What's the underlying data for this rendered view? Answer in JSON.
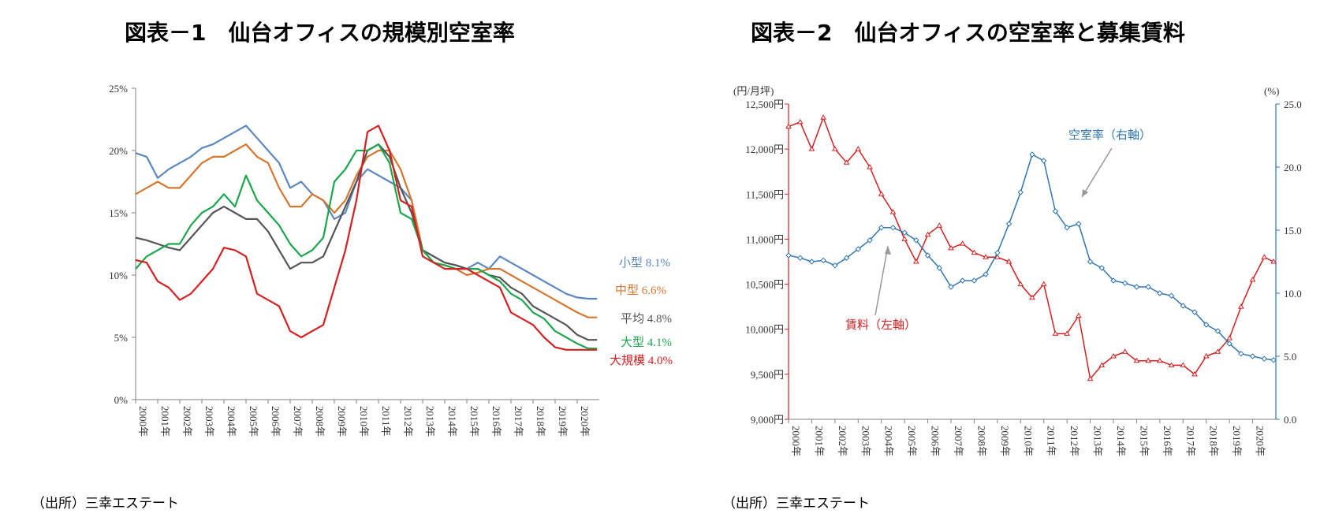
{
  "titles": {
    "left": "図表－1　仙台オフィスの規模別空室率",
    "right": "図表－2　仙台オフィスの空室率と募集賃料"
  },
  "sources": {
    "left": "（出所）三幸エステート",
    "right": "（出所）三幸エステート"
  },
  "chart_data": [
    {
      "type": "line",
      "title": "仙台オフィスの規模別空室率",
      "xlabel": "",
      "ylabel": "",
      "x_categories": [
        "2000年",
        "2001年",
        "2002年",
        "2003年",
        "2004年",
        "2005年",
        "2006年",
        "2007年",
        "2008年",
        "2009年",
        "2010年",
        "2011年",
        "2012年",
        "2013年",
        "2014年",
        "2015年",
        "2016年",
        "2017年",
        "2018年",
        "2019年",
        "2020年"
      ],
      "ylim": [
        0,
        25
      ],
      "y_ticks": [
        "0%",
        "5%",
        "10%",
        "15%",
        "20%",
        "25%"
      ],
      "x": [
        2000.0,
        2000.5,
        2001.0,
        2001.5,
        2002.0,
        2002.5,
        2003.0,
        2003.5,
        2004.0,
        2004.5,
        2005.0,
        2005.5,
        2006.0,
        2006.5,
        2007.0,
        2007.5,
        2008.0,
        2008.5,
        2009.0,
        2009.5,
        2010.0,
        2010.5,
        2011.0,
        2011.5,
        2012.0,
        2012.5,
        2013.0,
        2013.5,
        2014.0,
        2014.5,
        2015.0,
        2015.5,
        2016.0,
        2016.5,
        2017.0,
        2017.5,
        2018.0,
        2018.5,
        2019.0,
        2019.5,
        2020.0,
        2020.5,
        2020.9
      ],
      "series": [
        {
          "name": "小型",
          "label": "小型",
          "value_label": "8.1%",
          "color": "#5b87c0",
          "values": [
            19.8,
            19.5,
            17.8,
            18.5,
            19.0,
            19.5,
            20.2,
            20.5,
            21.0,
            21.5,
            22.0,
            21.0,
            20.0,
            19.0,
            17.0,
            17.5,
            16.5,
            16.0,
            14.5,
            15.0,
            17.5,
            18.5,
            18.0,
            17.5,
            17.0,
            16.0,
            12.0,
            11.5,
            11.0,
            10.8,
            10.5,
            11.0,
            10.5,
            11.5,
            11.0,
            10.5,
            10.0,
            9.5,
            9.0,
            8.5,
            8.2,
            8.1,
            8.1
          ]
        },
        {
          "name": "中型",
          "label": "中型",
          "value_label": "6.6%",
          "color": "#d6762e",
          "values": [
            16.5,
            17.0,
            17.5,
            17.0,
            17.0,
            18.0,
            19.0,
            19.5,
            19.5,
            20.0,
            20.5,
            19.5,
            19.0,
            17.0,
            15.5,
            15.5,
            16.5,
            16.0,
            15.0,
            16.0,
            18.0,
            19.5,
            20.0,
            20.0,
            18.5,
            16.0,
            12.0,
            11.0,
            10.8,
            10.5,
            10.0,
            10.2,
            10.5,
            10.5,
            10.0,
            9.5,
            9.0,
            8.5,
            8.0,
            7.5,
            7.0,
            6.6,
            6.6
          ]
        },
        {
          "name": "平均",
          "label": "平均",
          "value_label": "4.8%",
          "color": "#555555",
          "values": [
            13.0,
            12.8,
            12.5,
            12.2,
            12.0,
            13.0,
            14.0,
            15.0,
            15.5,
            15.0,
            14.5,
            14.5,
            13.5,
            12.0,
            10.5,
            11.0,
            11.0,
            11.5,
            13.5,
            15.5,
            17.5,
            20.0,
            20.5,
            19.5,
            17.0,
            15.0,
            12.0,
            11.5,
            11.0,
            10.8,
            10.5,
            10.5,
            10.0,
            9.8,
            9.0,
            8.5,
            7.5,
            7.0,
            6.5,
            6.0,
            5.2,
            4.8,
            4.8
          ]
        },
        {
          "name": "大型",
          "label": "大型",
          "value_label": "4.1%",
          "color": "#1aa64a",
          "values": [
            10.5,
            11.5,
            12.0,
            12.5,
            12.5,
            14.0,
            15.0,
            15.5,
            16.5,
            15.5,
            18.0,
            16.0,
            15.0,
            14.0,
            12.5,
            11.5,
            12.0,
            13.0,
            17.5,
            18.5,
            20.0,
            20.0,
            20.5,
            19.0,
            15.0,
            14.5,
            12.0,
            11.0,
            10.8,
            10.5,
            10.5,
            10.5,
            10.0,
            9.5,
            8.5,
            8.0,
            7.0,
            6.5,
            5.5,
            5.0,
            4.5,
            4.1,
            4.1
          ]
        },
        {
          "name": "大規模",
          "label": "大規模",
          "value_label": "4.0%",
          "color": "#d42020",
          "values": [
            11.2,
            11.0,
            9.5,
            9.0,
            8.0,
            8.5,
            9.5,
            10.5,
            12.2,
            12.0,
            11.5,
            8.5,
            8.0,
            7.5,
            5.5,
            5.0,
            5.5,
            6.0,
            9.0,
            12.0,
            16.0,
            21.5,
            22.0,
            20.0,
            16.0,
            15.5,
            11.5,
            11.0,
            10.5,
            10.5,
            10.5,
            10.0,
            9.5,
            9.0,
            7.0,
            6.5,
            6.0,
            5.0,
            4.2,
            4.0,
            4.0,
            4.0,
            4.0
          ]
        }
      ]
    },
    {
      "type": "line",
      "title": "仙台オフィスの空室率と募集賃料",
      "x_categories": [
        "2000年",
        "2001年",
        "2002年",
        "2003年",
        "2004年",
        "2005年",
        "2006年",
        "2007年",
        "2008年",
        "2009年",
        "2010年",
        "2011年",
        "2012年",
        "2013年",
        "2014年",
        "2015年",
        "2016年",
        "2017年",
        "2018年",
        "2019年",
        "2020年"
      ],
      "left_axis": {
        "unit_label": "(円/月坪)",
        "ylim": [
          9000,
          12500
        ],
        "y_ticks": [
          "9,000円",
          "9,500円",
          "10,000円",
          "10,500円",
          "11,000円",
          "11,500円",
          "12,000円",
          "12,500円"
        ]
      },
      "right_axis": {
        "unit_label": "(%)",
        "ylim": [
          0,
          25
        ],
        "y_ticks": [
          "0.0",
          "5.0",
          "10.0",
          "15.0",
          "20.0",
          "25.0"
        ]
      },
      "x": [
        2000.0,
        2000.5,
        2001.0,
        2001.5,
        2002.0,
        2002.5,
        2003.0,
        2003.5,
        2004.0,
        2004.5,
        2005.0,
        2005.5,
        2006.0,
        2006.5,
        2007.0,
        2007.5,
        2008.0,
        2008.5,
        2009.0,
        2009.5,
        2010.0,
        2010.5,
        2011.0,
        2011.5,
        2012.0,
        2012.5,
        2013.0,
        2013.5,
        2014.0,
        2014.5,
        2015.0,
        2015.5,
        2016.0,
        2016.5,
        2017.0,
        2017.5,
        2018.0,
        2018.5,
        2019.0,
        2019.5,
        2020.0,
        2020.5,
        2020.9
      ],
      "series": [
        {
          "name": "賃料（左軸）",
          "axis": "left",
          "color": "#d42020",
          "values": [
            12250,
            12300,
            12000,
            12350,
            12000,
            11850,
            12000,
            11800,
            11500,
            11300,
            11000,
            10750,
            11050,
            11150,
            10900,
            10950,
            10850,
            10800,
            10800,
            10750,
            10500,
            10350,
            10500,
            9950,
            9950,
            10150,
            9450,
            9600,
            9700,
            9750,
            9650,
            9650,
            9650,
            9600,
            9600,
            9500,
            9700,
            9750,
            9900,
            10250,
            10550,
            10800,
            10750
          ]
        },
        {
          "name": "空室率（右軸）",
          "axis": "right",
          "color": "#2f75b5",
          "values": [
            13.0,
            12.8,
            12.5,
            12.6,
            12.2,
            12.8,
            13.5,
            14.2,
            15.2,
            15.2,
            14.8,
            14.2,
            13.0,
            12.0,
            10.5,
            11.0,
            11.0,
            11.5,
            13.2,
            15.5,
            18.0,
            21.0,
            20.5,
            16.5,
            15.2,
            15.5,
            12.5,
            12.0,
            11.0,
            10.8,
            10.5,
            10.5,
            10.0,
            9.8,
            9.0,
            8.5,
            7.5,
            7.0,
            6.0,
            5.2,
            5.0,
            4.8,
            4.7
          ]
        }
      ],
      "annotations": [
        "空室率（右軸）",
        "賃料（左軸）"
      ]
    }
  ]
}
